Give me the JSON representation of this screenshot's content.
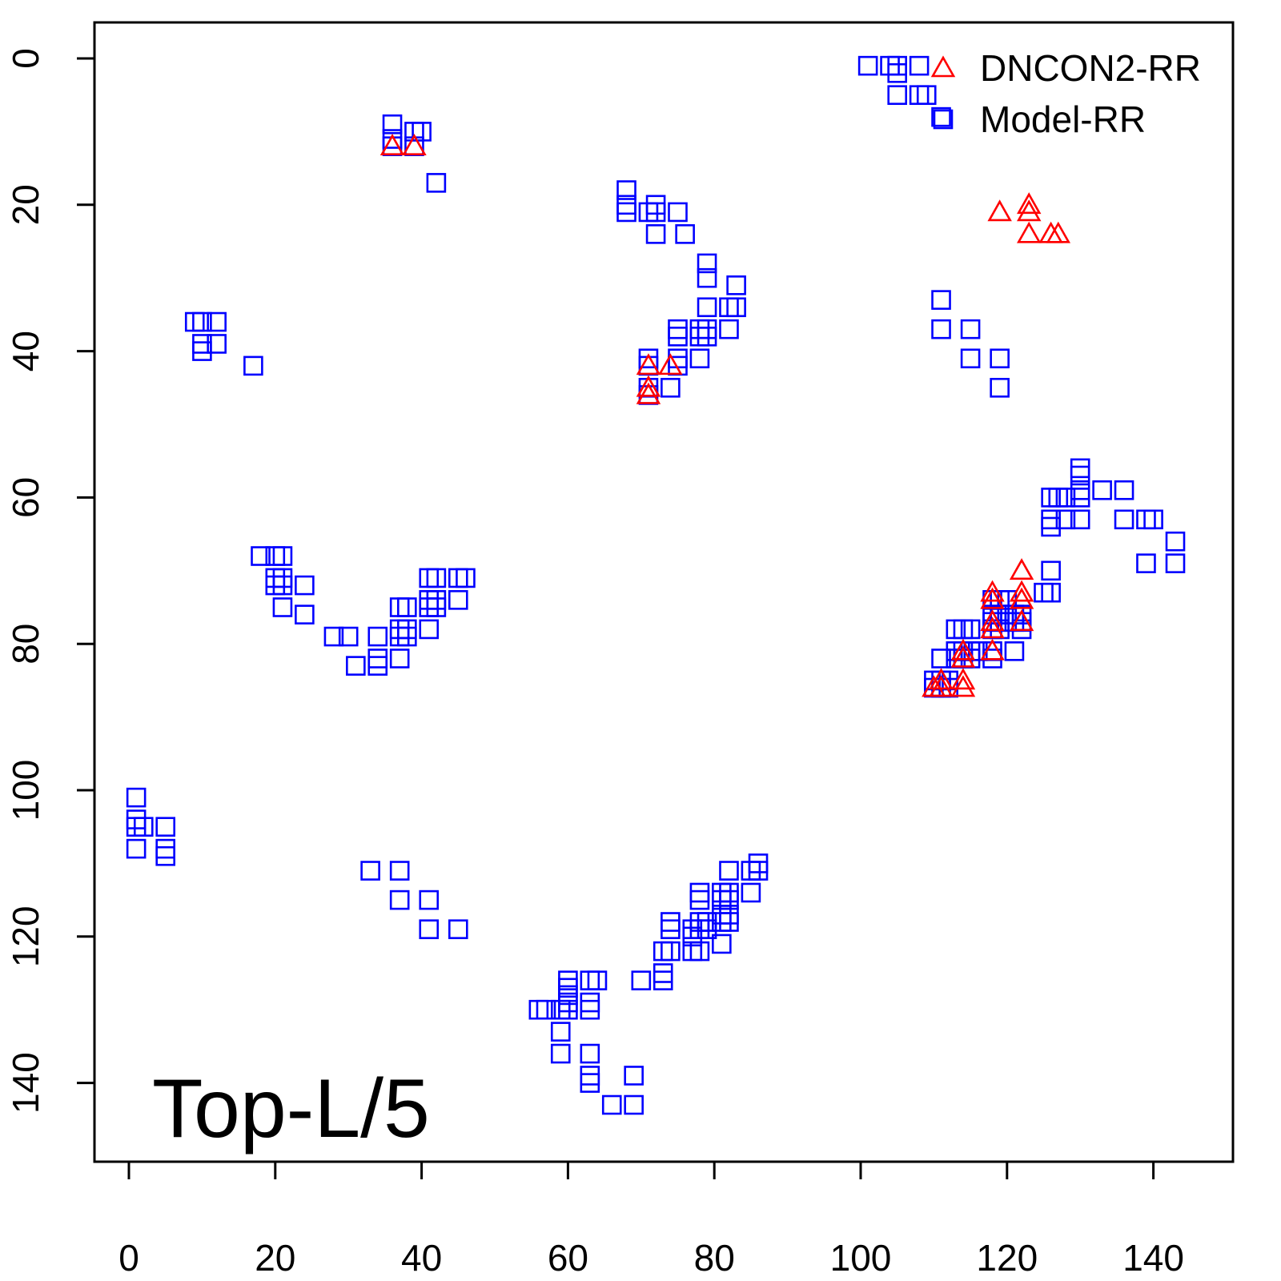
{
  "chart_data": {
    "type": "scatter",
    "title": "",
    "xlabel": "",
    "ylabel": "",
    "xlim": [
      -4,
      151
    ],
    "ylim": [
      150,
      -4.5
    ],
    "y_inverted": true,
    "grid": false,
    "legend_position": "top-right",
    "x_ticks": [
      "0",
      "20",
      "40",
      "60",
      "80",
      "100",
      "120",
      "140"
    ],
    "y_ticks": [
      "0",
      "20",
      "40",
      "60",
      "80",
      "100",
      "120",
      "140"
    ],
    "annotation": "Top-L/5",
    "series": [
      {
        "name": "DNCON2-RR",
        "marker": "triangle",
        "color": "#ff0000",
        "points": [
          [
            36,
            12
          ],
          [
            39,
            12
          ],
          [
            71,
            42
          ],
          [
            74,
            42
          ],
          [
            71,
            45
          ],
          [
            71,
            46
          ],
          [
            119,
            21
          ],
          [
            123,
            20
          ],
          [
            123,
            21
          ],
          [
            123,
            24
          ],
          [
            126,
            24
          ],
          [
            127,
            24
          ],
          [
            110,
            86
          ],
          [
            111,
            85
          ],
          [
            111,
            86
          ],
          [
            114,
            81
          ],
          [
            114,
            82
          ],
          [
            114,
            85
          ],
          [
            114,
            86
          ],
          [
            118,
            73
          ],
          [
            118,
            74
          ],
          [
            118,
            77
          ],
          [
            118,
            78
          ],
          [
            118,
            81
          ],
          [
            122,
            70
          ],
          [
            122,
            73
          ],
          [
            122,
            74
          ],
          [
            122,
            77
          ]
        ]
      },
      {
        "name": "Model-RR",
        "marker": "square",
        "color": "#0000ff",
        "points": [
          [
            101,
            1
          ],
          [
            104,
            1
          ],
          [
            105,
            1
          ],
          [
            108,
            1
          ],
          [
            105,
            2
          ],
          [
            105,
            5
          ],
          [
            108,
            5
          ],
          [
            109,
            5
          ],
          [
            111,
            8
          ],
          [
            36,
            9
          ],
          [
            36,
            11
          ],
          [
            36,
            12
          ],
          [
            39,
            10
          ],
          [
            40,
            10
          ],
          [
            39,
            12
          ],
          [
            42,
            17
          ],
          [
            68,
            18
          ],
          [
            68,
            20
          ],
          [
            68,
            21
          ],
          [
            71,
            21
          ],
          [
            72,
            20
          ],
          [
            72,
            21
          ],
          [
            72,
            24
          ],
          [
            75,
            21
          ],
          [
            76,
            24
          ],
          [
            79,
            28
          ],
          [
            79,
            30
          ],
          [
            83,
            31
          ],
          [
            79,
            34
          ],
          [
            82,
            34
          ],
          [
            83,
            34
          ],
          [
            82,
            37
          ],
          [
            75,
            37
          ],
          [
            75,
            38
          ],
          [
            78,
            37
          ],
          [
            79,
            37
          ],
          [
            78,
            38
          ],
          [
            79,
            38
          ],
          [
            78,
            41
          ],
          [
            71,
            41
          ],
          [
            71,
            42
          ],
          [
            75,
            41
          ],
          [
            75,
            42
          ],
          [
            71,
            45
          ],
          [
            71,
            46
          ],
          [
            74,
            45
          ],
          [
            111,
            33
          ],
          [
            111,
            37
          ],
          [
            115,
            37
          ],
          [
            115,
            41
          ],
          [
            119,
            41
          ],
          [
            119,
            45
          ],
          [
            9,
            36
          ],
          [
            10,
            36
          ],
          [
            12,
            36
          ],
          [
            10,
            39
          ],
          [
            12,
            39
          ],
          [
            10,
            40
          ],
          [
            17,
            42
          ],
          [
            18,
            68
          ],
          [
            20,
            68
          ],
          [
            21,
            68
          ],
          [
            20,
            71
          ],
          [
            20,
            72
          ],
          [
            21,
            71
          ],
          [
            21,
            72
          ],
          [
            24,
            72
          ],
          [
            21,
            75
          ],
          [
            24,
            76
          ],
          [
            28,
            79
          ],
          [
            30,
            79
          ],
          [
            34,
            79
          ],
          [
            31,
            83
          ],
          [
            34,
            82
          ],
          [
            34,
            83
          ],
          [
            37,
            75
          ],
          [
            38,
            75
          ],
          [
            37,
            78
          ],
          [
            38,
            78
          ],
          [
            37,
            79
          ],
          [
            38,
            79
          ],
          [
            37,
            82
          ],
          [
            41,
            71
          ],
          [
            42,
            71
          ],
          [
            45,
            71
          ],
          [
            46,
            71
          ],
          [
            41,
            74
          ],
          [
            41,
            75
          ],
          [
            42,
            74
          ],
          [
            42,
            75
          ],
          [
            45,
            74
          ],
          [
            41,
            78
          ],
          [
            130,
            56
          ],
          [
            130,
            57
          ],
          [
            130,
            59
          ],
          [
            128,
            60
          ],
          [
            130,
            60
          ],
          [
            126,
            60
          ],
          [
            127,
            60
          ],
          [
            126,
            63
          ],
          [
            126,
            64
          ],
          [
            128,
            63
          ],
          [
            130,
            63
          ],
          [
            133,
            59
          ],
          [
            136,
            59
          ],
          [
            136,
            63
          ],
          [
            139,
            63
          ],
          [
            140,
            63
          ],
          [
            143,
            66
          ],
          [
            139,
            69
          ],
          [
            143,
            69
          ],
          [
            126,
            70
          ],
          [
            125,
            73
          ],
          [
            126,
            73
          ],
          [
            118,
            74
          ],
          [
            119,
            74
          ],
          [
            120,
            74
          ],
          [
            118,
            76
          ],
          [
            119,
            76
          ],
          [
            120,
            76
          ],
          [
            121,
            76
          ],
          [
            122,
            76
          ],
          [
            118,
            77
          ],
          [
            119,
            77
          ],
          [
            120,
            77
          ],
          [
            121,
            77
          ],
          [
            122,
            77
          ],
          [
            113,
            78
          ],
          [
            114,
            78
          ],
          [
            115,
            78
          ],
          [
            118,
            78
          ],
          [
            119,
            78
          ],
          [
            122,
            78
          ],
          [
            113,
            81
          ],
          [
            114,
            81
          ],
          [
            115,
            81
          ],
          [
            116,
            81
          ],
          [
            118,
            81
          ],
          [
            121,
            81
          ],
          [
            111,
            82
          ],
          [
            113,
            82
          ],
          [
            114,
            82
          ],
          [
            115,
            82
          ],
          [
            118,
            82
          ],
          [
            110,
            85
          ],
          [
            111,
            85
          ],
          [
            112,
            85
          ],
          [
            110,
            86
          ],
          [
            111,
            86
          ],
          [
            112,
            86
          ],
          [
            1,
            101
          ],
          [
            1,
            104
          ],
          [
            1,
            105
          ],
          [
            2,
            105
          ],
          [
            5,
            105
          ],
          [
            1,
            108
          ],
          [
            5,
            108
          ],
          [
            5,
            109
          ],
          [
            33,
            111
          ],
          [
            37,
            111
          ],
          [
            37,
            115
          ],
          [
            41,
            115
          ],
          [
            41,
            119
          ],
          [
            45,
            119
          ],
          [
            86,
            110
          ],
          [
            85,
            111
          ],
          [
            86,
            111
          ],
          [
            82,
            111
          ],
          [
            85,
            114
          ],
          [
            78,
            114
          ],
          [
            78,
            115
          ],
          [
            81,
            114
          ],
          [
            81,
            115
          ],
          [
            82,
            114
          ],
          [
            82,
            115
          ],
          [
            81,
            117
          ],
          [
            81,
            118
          ],
          [
            82,
            117
          ],
          [
            82,
            118
          ],
          [
            78,
            118
          ],
          [
            78,
            119
          ],
          [
            79,
            118
          ],
          [
            79,
            119
          ],
          [
            74,
            118
          ],
          [
            74,
            119
          ],
          [
            77,
            119
          ],
          [
            77,
            120
          ],
          [
            73,
            122
          ],
          [
            74,
            122
          ],
          [
            77,
            122
          ],
          [
            78,
            122
          ],
          [
            73,
            125
          ],
          [
            73,
            126
          ],
          [
            70,
            126
          ],
          [
            81,
            121
          ],
          [
            60,
            126
          ],
          [
            63,
            126
          ],
          [
            64,
            126
          ],
          [
            60,
            127
          ],
          [
            60,
            128
          ],
          [
            60,
            129
          ],
          [
            60,
            130
          ],
          [
            63,
            129
          ],
          [
            63,
            130
          ],
          [
            56,
            130
          ],
          [
            57,
            130
          ],
          [
            59,
            130
          ],
          [
            59,
            133
          ],
          [
            59,
            136
          ],
          [
            63,
            136
          ],
          [
            63,
            139
          ],
          [
            63,
            140
          ],
          [
            69,
            139
          ],
          [
            66,
            143
          ],
          [
            69,
            143
          ]
        ]
      }
    ]
  }
}
